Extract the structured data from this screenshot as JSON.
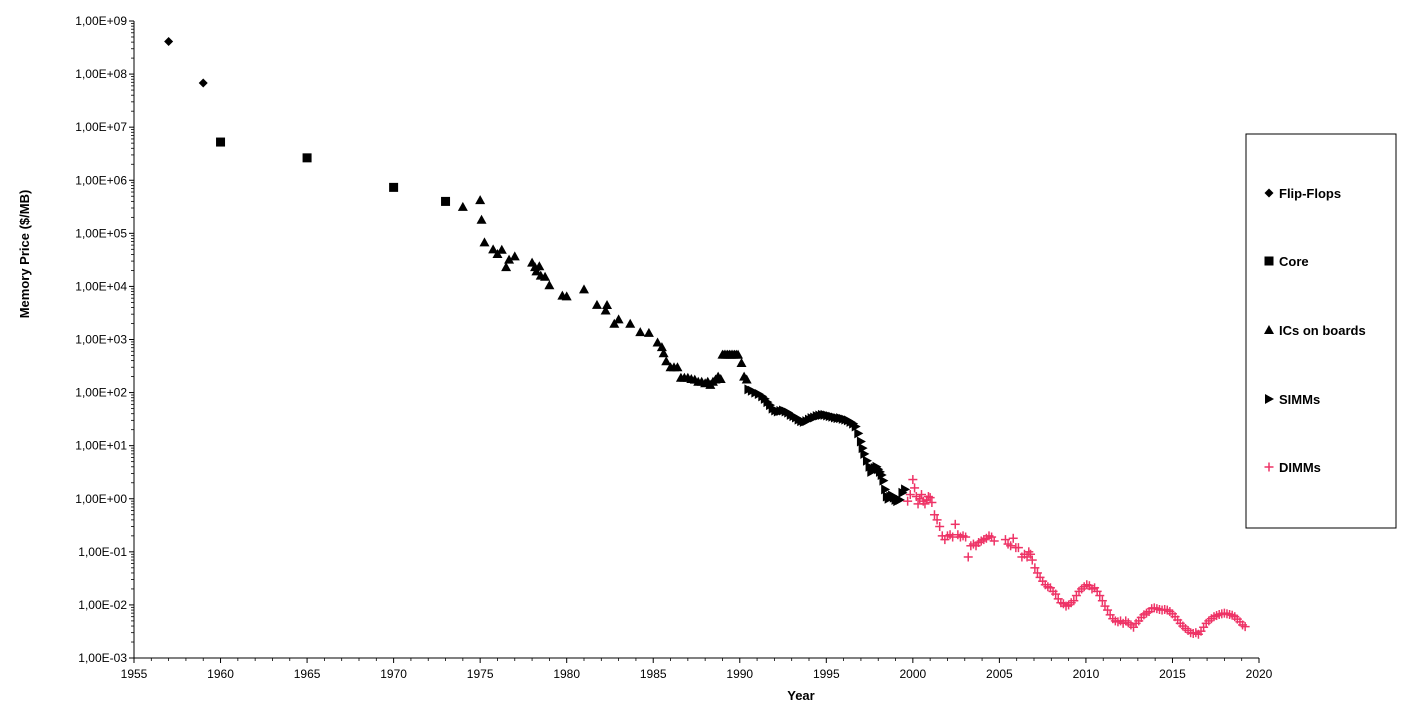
{
  "chart_data": {
    "type": "scatter",
    "title": "",
    "xlabel": "Year",
    "ylabel": "Memory Price ($/MB)",
    "xlim": [
      1955,
      2020
    ],
    "ylim": [
      0.001,
      1000000000
    ],
    "yscale": "log",
    "x_ticks": [
      1955,
      1960,
      1965,
      1970,
      1975,
      1980,
      1985,
      1990,
      1995,
      2000,
      2005,
      2010,
      2015,
      2020
    ],
    "x_tick_labels": [
      "1955",
      "1960",
      "1965",
      "1970",
      "1975",
      "1980",
      "1985",
      "1990",
      "1995",
      "2000",
      "2005",
      "2010",
      "2015",
      "2020"
    ],
    "y_ticks": [
      1000000000,
      100000000,
      10000000,
      1000000,
      100000,
      10000,
      1000,
      100,
      10,
      1,
      0.1,
      0.01,
      0.001
    ],
    "y_tick_labels": [
      "1,00E+09",
      "1,00E+08",
      "1,00E+07",
      "1,00E+06",
      "1,00E+05",
      "1,00E+04",
      "1,00E+03",
      "1,00E+02",
      "1,00E+01",
      "1,00E+00",
      "1,00E-01",
      "1,00E-02",
      "1,00E-03"
    ],
    "grid": false,
    "legend_position": "right",
    "series": [
      {
        "name": "Flip-Flops",
        "marker": "diamond",
        "color": "#000000",
        "points": [
          [
            1957,
            411041792
          ],
          [
            1959,
            67947725
          ]
        ]
      },
      {
        "name": "Core",
        "marker": "square",
        "color": "#000000",
        "points": [
          [
            1960,
            5242880
          ],
          [
            1965,
            2642412
          ],
          [
            1970,
            734003
          ],
          [
            1973,
            399360
          ]
        ]
      },
      {
        "name": "ICs on boards",
        "marker": "triangle",
        "color": "#000000",
        "points": [
          [
            1974,
            314573
          ],
          [
            1975,
            421888
          ],
          [
            1975.08,
            180224
          ],
          [
            1975.25,
            67584
          ],
          [
            1975.75,
            49920
          ],
          [
            1976,
            40704
          ],
          [
            1976.25,
            48960
          ],
          [
            1976.5,
            23040
          ],
          [
            1976.67,
            32000
          ],
          [
            1977,
            36800
          ],
          [
            1978,
            28000
          ],
          [
            1978.17,
            23040
          ],
          [
            1978.25,
            19200
          ],
          [
            1978.42,
            24000
          ],
          [
            1978.5,
            16000
          ],
          [
            1978.75,
            15200
          ],
          [
            1979,
            10528
          ],
          [
            1979.75,
            6704
          ],
          [
            1980,
            6480
          ],
          [
            1981,
            8800
          ],
          [
            1981.75,
            4479
          ],
          [
            1982.25,
            3520
          ],
          [
            1982.33,
            4464
          ],
          [
            1982.75,
            1980
          ],
          [
            1983,
            2396.8
          ],
          [
            1983.67,
            1980
          ],
          [
            1984.25,
            1379.2
          ],
          [
            1984.75,
            1331.2
          ],
          [
            1985.25,
            880
          ],
          [
            1985.5,
            720
          ],
          [
            1985.6,
            550
          ],
          [
            1985.75,
            390
          ],
          [
            1986,
            300
          ],
          [
            1986.2,
            300
          ],
          [
            1986.4,
            300
          ],
          [
            1986.6,
            190
          ],
          [
            1986.8,
            190
          ],
          [
            1987,
            190
          ],
          [
            1987.2,
            180
          ],
          [
            1987.4,
            175
          ],
          [
            1987.6,
            160
          ],
          [
            1987.8,
            160
          ],
          [
            1988,
            150
          ],
          [
            1988.15,
            160
          ],
          [
            1988.3,
            140
          ],
          [
            1988.45,
            160
          ],
          [
            1988.6,
            176
          ],
          [
            1988.75,
            200
          ],
          [
            1988.9,
            180
          ],
          [
            1989,
            520
          ],
          [
            1989.1,
            520
          ],
          [
            1989.2,
            520
          ],
          [
            1989.3,
            520
          ],
          [
            1989.4,
            520
          ],
          [
            1989.5,
            520
          ],
          [
            1989.6,
            520
          ],
          [
            1989.7,
            520
          ],
          [
            1989.8,
            520
          ],
          [
            1989.9,
            520
          ],
          [
            1990.1,
            360
          ],
          [
            1990.25,
            200
          ],
          [
            1990.4,
            176
          ]
        ]
      },
      {
        "name": "SIMMs",
        "marker": "triangle-right",
        "color": "#000000",
        "points": [
          [
            1990.5,
            115
          ],
          [
            1990.7,
            108
          ],
          [
            1990.9,
            100
          ],
          [
            1991.1,
            94
          ],
          [
            1991.3,
            85
          ],
          [
            1991.45,
            76
          ],
          [
            1991.6,
            66
          ],
          [
            1991.75,
            58
          ],
          [
            1991.9,
            50
          ],
          [
            1992.05,
            46
          ],
          [
            1992.2,
            44
          ],
          [
            1992.35,
            45
          ],
          [
            1992.5,
            46
          ],
          [
            1992.65,
            44
          ],
          [
            1992.8,
            42
          ],
          [
            1992.95,
            38
          ],
          [
            1993.1,
            36
          ],
          [
            1993.25,
            34
          ],
          [
            1993.4,
            31
          ],
          [
            1993.55,
            29
          ],
          [
            1993.7,
            28
          ],
          [
            1993.85,
            29
          ],
          [
            1994,
            31
          ],
          [
            1994.15,
            33
          ],
          [
            1994.3,
            34
          ],
          [
            1994.45,
            36
          ],
          [
            1994.6,
            37
          ],
          [
            1994.75,
            38
          ],
          [
            1994.9,
            38
          ],
          [
            1995.05,
            37
          ],
          [
            1995.2,
            36
          ],
          [
            1995.35,
            35
          ],
          [
            1995.5,
            34
          ],
          [
            1995.65,
            33
          ],
          [
            1995.8,
            33
          ],
          [
            1995.95,
            32
          ],
          [
            1996.1,
            31
          ],
          [
            1996.25,
            30
          ],
          [
            1996.4,
            28
          ],
          [
            1996.55,
            26
          ],
          [
            1996.7,
            23
          ],
          [
            1996.85,
            17
          ],
          [
            1997,
            12
          ],
          [
            1997.1,
            9
          ],
          [
            1997.2,
            7
          ],
          [
            1997.35,
            5.2
          ],
          [
            1997.5,
            4
          ],
          [
            1997.6,
            3.2
          ],
          [
            1997.7,
            3.5
          ],
          [
            1997.8,
            3.8
          ],
          [
            1997.9,
            4
          ],
          [
            1998,
            3.6
          ],
          [
            1998.1,
            3.2
          ],
          [
            1998.2,
            2.8
          ],
          [
            1998.3,
            2.2
          ],
          [
            1998.4,
            1.5
          ],
          [
            1998.5,
            1.1
          ],
          [
            1998.6,
            1.0
          ],
          [
            1998.7,
            1.1
          ],
          [
            1998.8,
            1.15
          ],
          [
            1998.9,
            1.05
          ],
          [
            1999,
            0.95
          ],
          [
            1999.1,
            0.9
          ],
          [
            1999.25,
            0.95
          ],
          [
            1999.4,
            1.3
          ],
          [
            1999.55,
            1.5
          ]
        ]
      },
      {
        "name": "DIMMs",
        "marker": "plus",
        "color": "#ee3366",
        "points": [
          [
            1999.7,
            0.9
          ],
          [
            1999.85,
            1.2
          ],
          [
            2000,
            2.3
          ],
          [
            2000.1,
            1.6
          ],
          [
            2000.2,
            1.1
          ],
          [
            2000.3,
            0.8
          ],
          [
            2000.4,
            1.0
          ],
          [
            2000.5,
            1.2
          ],
          [
            2000.6,
            0.9
          ],
          [
            2000.7,
            0.8
          ],
          [
            2000.8,
            0.95
          ],
          [
            2000.9,
            1.1
          ],
          [
            2001,
            1.05
          ],
          [
            2001.1,
            0.85
          ],
          [
            2001.25,
            0.5
          ],
          [
            2001.4,
            0.4
          ],
          [
            2001.55,
            0.3
          ],
          [
            2001.7,
            0.2
          ],
          [
            2001.85,
            0.17
          ],
          [
            2002,
            0.2
          ],
          [
            2002.15,
            0.21
          ],
          [
            2002.3,
            0.19
          ],
          [
            2002.45,
            0.33
          ],
          [
            2002.6,
            0.21
          ],
          [
            2002.75,
            0.19
          ],
          [
            2002.9,
            0.2
          ],
          [
            2003.05,
            0.19
          ],
          [
            2003.2,
            0.08
          ],
          [
            2003.35,
            0.13
          ],
          [
            2003.5,
            0.14
          ],
          [
            2003.65,
            0.13
          ],
          [
            2003.8,
            0.15
          ],
          [
            2003.95,
            0.16
          ],
          [
            2004.1,
            0.17
          ],
          [
            2004.25,
            0.18
          ],
          [
            2004.4,
            0.2
          ],
          [
            2004.55,
            0.19
          ],
          [
            2004.7,
            0.16
          ],
          [
            2005.35,
            0.17
          ],
          [
            2005.5,
            0.14
          ],
          [
            2005.65,
            0.13
          ],
          [
            2005.8,
            0.18
          ],
          [
            2005.95,
            0.12
          ],
          [
            2006.1,
            0.12
          ],
          [
            2006.3,
            0.08
          ],
          [
            2006.45,
            0.09
          ],
          [
            2006.6,
            0.08
          ],
          [
            2006.7,
            0.1
          ],
          [
            2006.8,
            0.09
          ],
          [
            2006.9,
            0.07
          ],
          [
            2007.05,
            0.05
          ],
          [
            2007.2,
            0.04
          ],
          [
            2007.35,
            0.033
          ],
          [
            2007.5,
            0.028
          ],
          [
            2007.65,
            0.024
          ],
          [
            2007.8,
            0.022
          ],
          [
            2007.95,
            0.021
          ],
          [
            2008.1,
            0.018
          ],
          [
            2008.25,
            0.016
          ],
          [
            2008.4,
            0.013
          ],
          [
            2008.55,
            0.011
          ],
          [
            2008.7,
            0.0105
          ],
          [
            2008.85,
            0.0095
          ],
          [
            2009,
            0.01
          ],
          [
            2009.15,
            0.011
          ],
          [
            2009.3,
            0.012
          ],
          [
            2009.45,
            0.015
          ],
          [
            2009.6,
            0.018
          ],
          [
            2009.75,
            0.02
          ],
          [
            2009.9,
            0.022
          ],
          [
            2010.05,
            0.024
          ],
          [
            2010.2,
            0.023
          ],
          [
            2010.35,
            0.02
          ],
          [
            2010.5,
            0.021
          ],
          [
            2010.65,
            0.018
          ],
          [
            2010.8,
            0.015
          ],
          [
            2010.95,
            0.012
          ],
          [
            2011.1,
            0.0095
          ],
          [
            2011.25,
            0.008
          ],
          [
            2011.4,
            0.0065
          ],
          [
            2011.55,
            0.0055
          ],
          [
            2011.7,
            0.005
          ],
          [
            2011.85,
            0.0048
          ],
          [
            2012,
            0.005
          ],
          [
            2012.15,
            0.0045
          ],
          [
            2012.3,
            0.005
          ],
          [
            2012.45,
            0.0046
          ],
          [
            2012.6,
            0.0042
          ],
          [
            2012.75,
            0.0038
          ],
          [
            2012.9,
            0.0045
          ],
          [
            2013.05,
            0.005
          ],
          [
            2013.2,
            0.0058
          ],
          [
            2013.35,
            0.0065
          ],
          [
            2013.5,
            0.007
          ],
          [
            2013.65,
            0.0075
          ],
          [
            2013.8,
            0.0085
          ],
          [
            2013.95,
            0.0088
          ],
          [
            2014.1,
            0.0085
          ],
          [
            2014.25,
            0.0082
          ],
          [
            2014.4,
            0.008
          ],
          [
            2014.55,
            0.0082
          ],
          [
            2014.7,
            0.008
          ],
          [
            2014.85,
            0.0075
          ],
          [
            2015,
            0.0068
          ],
          [
            2015.15,
            0.006
          ],
          [
            2015.3,
            0.0052
          ],
          [
            2015.45,
            0.0045
          ],
          [
            2015.6,
            0.004
          ],
          [
            2015.75,
            0.0036
          ],
          [
            2015.9,
            0.0033
          ],
          [
            2016.05,
            0.003
          ],
          [
            2016.2,
            0.0029
          ],
          [
            2016.35,
            0.003
          ],
          [
            2016.5,
            0.0028
          ],
          [
            2016.65,
            0.0032
          ],
          [
            2016.8,
            0.0038
          ],
          [
            2016.95,
            0.0045
          ],
          [
            2017.1,
            0.005
          ],
          [
            2017.25,
            0.0055
          ],
          [
            2017.4,
            0.006
          ],
          [
            2017.55,
            0.0063
          ],
          [
            2017.7,
            0.0066
          ],
          [
            2017.85,
            0.0068
          ],
          [
            2018,
            0.007
          ],
          [
            2018.15,
            0.0068
          ],
          [
            2018.3,
            0.0066
          ],
          [
            2018.45,
            0.0064
          ],
          [
            2018.6,
            0.006
          ],
          [
            2018.75,
            0.0054
          ],
          [
            2018.9,
            0.0048
          ],
          [
            2019.05,
            0.0042
          ],
          [
            2019.2,
            0.0039
          ]
        ]
      }
    ]
  }
}
